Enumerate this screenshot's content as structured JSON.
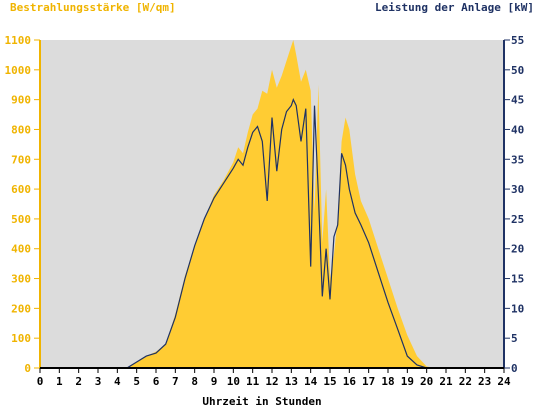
{
  "chart_data": {
    "type": "area",
    "left_title": "Bestrahlungsstärke [W/qm]",
    "right_title": "Leistung der Anlage [kW]",
    "xlabel": "Uhrzeit in Stunden",
    "xlim": [
      0,
      24
    ],
    "x_ticks": [
      0,
      1,
      2,
      3,
      4,
      5,
      6,
      7,
      8,
      9,
      10,
      11,
      12,
      13,
      14,
      15,
      16,
      17,
      18,
      19,
      20,
      21,
      22,
      23,
      24
    ],
    "y_left_lim": [
      0,
      1100
    ],
    "y_left_ticks": [
      0,
      100,
      200,
      300,
      400,
      500,
      600,
      700,
      800,
      900,
      1000,
      1100
    ],
    "y_right_lim": [
      0,
      55
    ],
    "y_right_ticks": [
      0,
      5,
      10,
      15,
      20,
      25,
      30,
      35,
      40,
      45,
      50,
      55
    ],
    "grid": false,
    "colors": {
      "plot_bg": "#dcdcdc",
      "irradiance_fill": "#ffcc33",
      "power_line": "#1f3264",
      "left_axis": "#f0b400",
      "right_axis": "#1f3264",
      "x_axis": "#000000"
    },
    "series": [
      {
        "name": "Bestrahlungsstärke [W/qm]",
        "axis": "left",
        "style": "area",
        "x": [
          0,
          4.5,
          5,
          5.5,
          6,
          6.5,
          7,
          7.5,
          8,
          8.5,
          9,
          9.5,
          10,
          10.25,
          10.5,
          10.75,
          11,
          11.25,
          11.5,
          11.75,
          12,
          12.25,
          12.5,
          12.75,
          13,
          13.1,
          13.25,
          13.5,
          13.75,
          14,
          14.2,
          14.4,
          14.6,
          14.8,
          15,
          15.2,
          15.4,
          15.6,
          15.8,
          16,
          16.3,
          16.6,
          17,
          17.5,
          18,
          18.5,
          19,
          19.5,
          20,
          20.5,
          24
        ],
        "y": [
          0,
          0,
          20,
          40,
          55,
          80,
          180,
          310,
          410,
          500,
          580,
          630,
          690,
          740,
          720,
          790,
          850,
          870,
          930,
          920,
          1000,
          940,
          980,
          1030,
          1080,
          1100,
          1050,
          960,
          1000,
          930,
          520,
          950,
          420,
          600,
          300,
          380,
          500,
          760,
          840,
          800,
          650,
          560,
          500,
          400,
          300,
          200,
          110,
          40,
          5,
          0,
          0
        ]
      },
      {
        "name": "Leistung der Anlage [kW]",
        "axis": "right",
        "style": "line",
        "x": [
          0,
          4.5,
          5,
          5.5,
          6,
          6.5,
          7,
          7.5,
          8,
          8.5,
          9,
          9.5,
          10,
          10.25,
          10.5,
          10.75,
          11,
          11.25,
          11.5,
          11.75,
          12,
          12.25,
          12.5,
          12.75,
          13,
          13.1,
          13.25,
          13.5,
          13.75,
          14,
          14.2,
          14.4,
          14.6,
          14.8,
          15,
          15.2,
          15.4,
          15.6,
          15.8,
          16,
          16.3,
          16.6,
          17,
          17.5,
          18,
          18.5,
          19,
          19.5,
          20,
          20.5,
          24
        ],
        "y": [
          0,
          0,
          1,
          2,
          2.5,
          4,
          8.5,
          15,
          20.5,
          25,
          28.5,
          31,
          33.5,
          35,
          34,
          37,
          39.5,
          40.5,
          38,
          28,
          42,
          33,
          40,
          43,
          44,
          45,
          44,
          38,
          43.5,
          17,
          44,
          29,
          12,
          20,
          11.5,
          22,
          24,
          36,
          34,
          30,
          26,
          24,
          21,
          16,
          11,
          6.5,
          2,
          0.5,
          0,
          0,
          0
        ]
      }
    ]
  }
}
